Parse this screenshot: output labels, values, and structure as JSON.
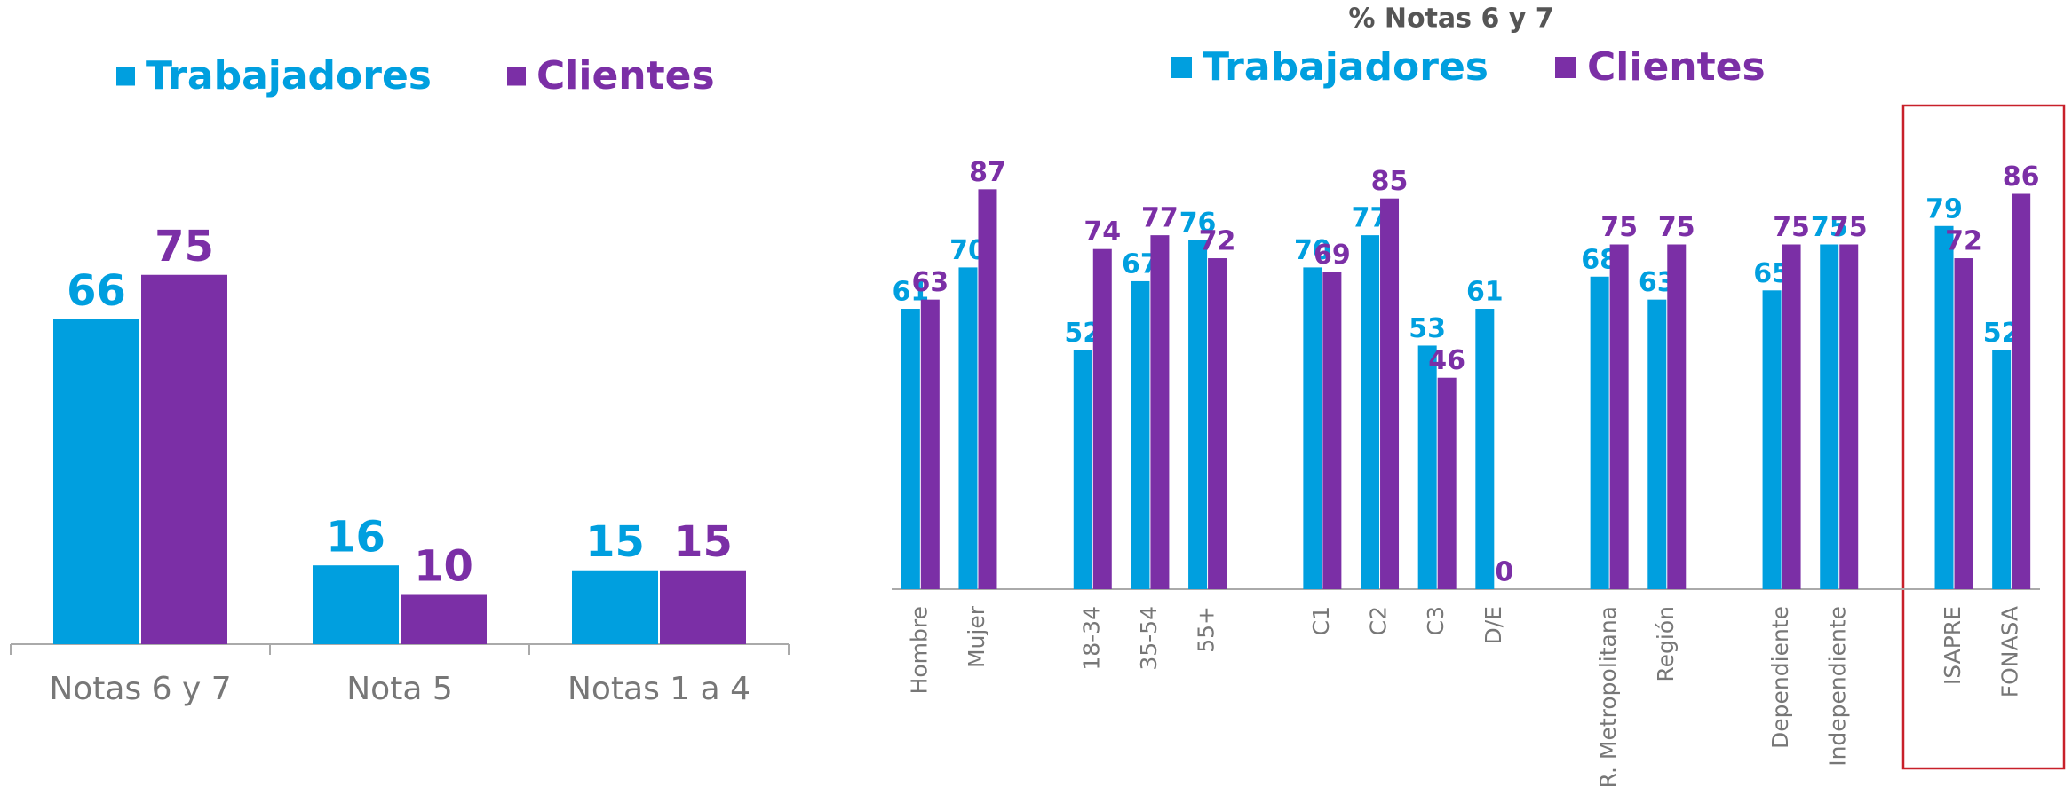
{
  "chart_data": [
    {
      "type": "bar",
      "categories": [
        "Notas 6 y 7",
        "Nota 5",
        "Notas 1 a 4"
      ],
      "series": [
        {
          "name": "Trabajadores",
          "color": "#009fdf",
          "values": [
            66,
            16,
            15
          ]
        },
        {
          "name": "Clientes",
          "color": "#7b2fa6",
          "values": [
            75,
            10,
            15
          ]
        }
      ]
    },
    {
      "type": "bar",
      "title": "% Notas 6 y 7",
      "categories": [
        "Hombre",
        "Mujer",
        null,
        "18-34",
        "35-54",
        "55+",
        null,
        "C1",
        "C2",
        "C3",
        "D/E",
        null,
        "R. Metropolitana",
        "Región",
        null,
        "Dependiente",
        "Independiente",
        null,
        "ISAPRE",
        "FONASA"
      ],
      "series": [
        {
          "name": "Trabajadores",
          "color": "#009fdf",
          "values": [
            61,
            70,
            null,
            52,
            67,
            76,
            null,
            70,
            77,
            53,
            61,
            null,
            68,
            63,
            null,
            65,
            75,
            null,
            79,
            52
          ]
        },
        {
          "name": "Clientes",
          "color": "#7b2fa6",
          "values": [
            63,
            87,
            null,
            74,
            77,
            72,
            null,
            69,
            85,
            46,
            0,
            null,
            75,
            75,
            null,
            75,
            75,
            null,
            72,
            86
          ]
        }
      ]
    }
  ]
}
